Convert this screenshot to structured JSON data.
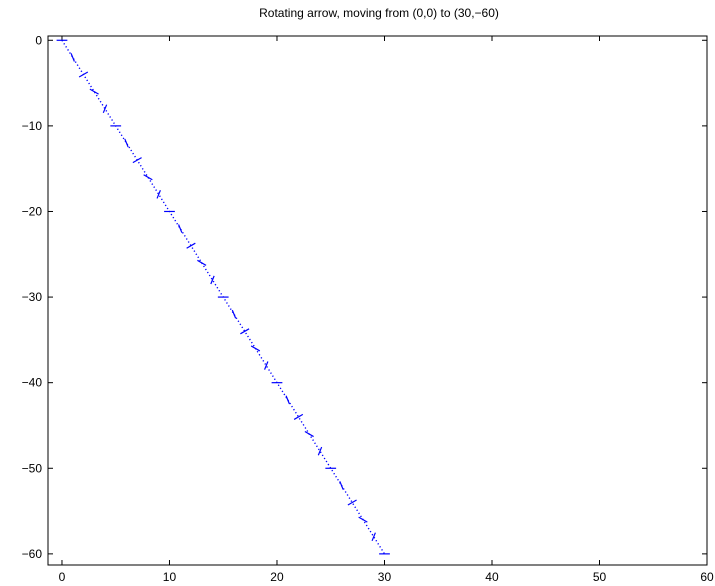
{
  "chart_data": {
    "type": "line",
    "title": "Rotating arrow, moving from (0,0) to (30,−60)",
    "xlabel": "",
    "ylabel": "",
    "xlim": [
      -1.3,
      60
    ],
    "ylim": [
      -61.3,
      0.5
    ],
    "grid": false,
    "x_ticks": [
      0,
      10,
      20,
      30,
      40,
      50,
      60
    ],
    "y_ticks": [
      0,
      -10,
      -20,
      -30,
      -40,
      -50,
      -60
    ],
    "x_tick_labels": [
      "0",
      "10",
      "20",
      "30",
      "40",
      "50",
      "60"
    ],
    "y_tick_labels": [
      "0",
      "−10",
      "−20",
      "−30",
      "−40",
      "−50",
      "−60"
    ],
    "series": [
      {
        "style": "dotted",
        "color": "#0000ff",
        "x": [
          0,
          30
        ],
        "y": [
          0,
          -60
        ]
      }
    ],
    "arrows": {
      "color": "#0000ff",
      "count": 31,
      "start": [
        0,
        0
      ],
      "end": [
        30,
        -60
      ],
      "length": 1.0
    }
  }
}
